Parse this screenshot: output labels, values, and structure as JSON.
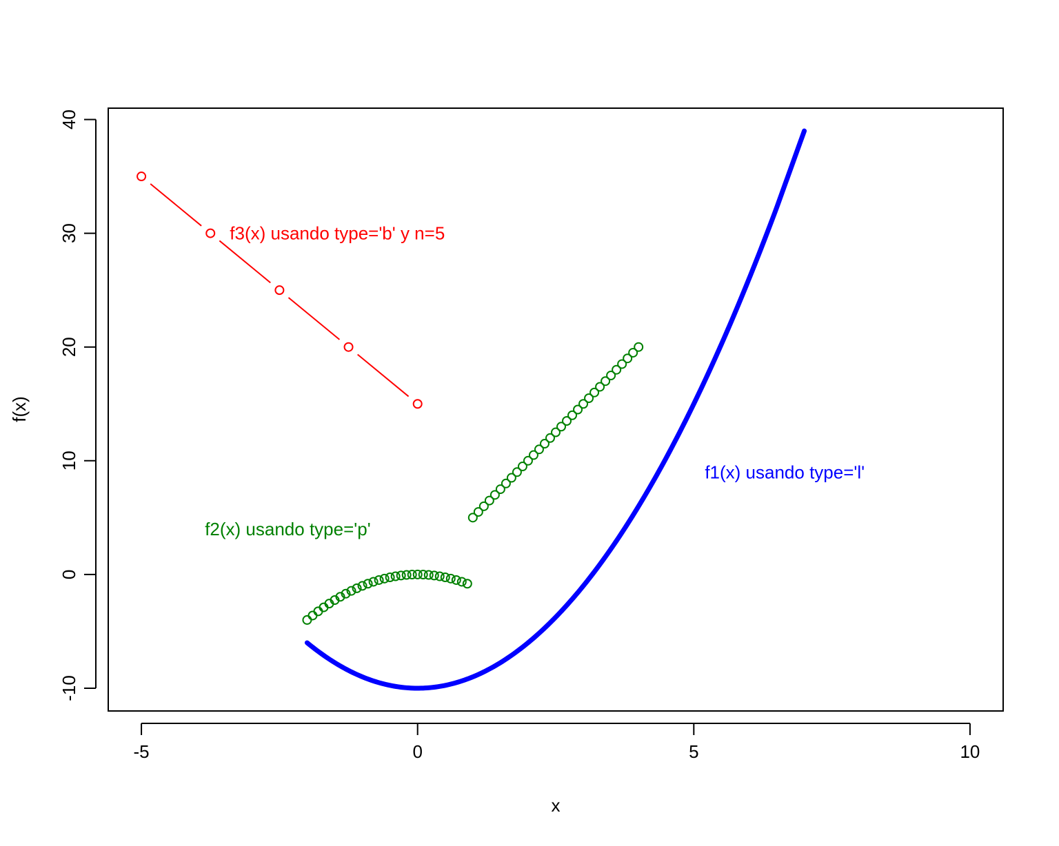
{
  "chart_data": {
    "type": "line",
    "xlabel": "x",
    "ylabel": "f(x)",
    "xlim": [
      -5.6,
      10.6
    ],
    "ylim": [
      -12,
      41
    ],
    "x_ticks": [
      -5,
      0,
      5,
      10
    ],
    "y_ticks": [
      -10,
      0,
      10,
      20,
      30,
      40
    ],
    "grid": false,
    "legend": "none",
    "series": [
      {
        "key": "f1",
        "color": "#0000ff",
        "style": "line",
        "x": [
          -2,
          -1.5,
          -1,
          -0.5,
          0,
          0.5,
          1,
          1.5,
          2,
          2.5,
          3,
          3.5,
          4,
          4.5,
          5,
          5.5,
          6,
          6.5,
          7
        ],
        "y": [
          -6,
          -7.75,
          -9,
          -9.75,
          -10,
          -9.75,
          -9,
          -7.75,
          -6,
          -3.75,
          -1,
          2.25,
          6,
          10.25,
          15,
          20.25,
          26,
          32.25,
          39
        ]
      },
      {
        "key": "f2a",
        "color": "#008000",
        "style": "points",
        "x": [
          -2,
          -1.9,
          -1.8,
          -1.7,
          -1.6,
          -1.5,
          -1.4,
          -1.3,
          -1.2,
          -1.1,
          -1,
          -0.9,
          -0.8,
          -0.7,
          -0.6,
          -0.5,
          -0.4,
          -0.3,
          -0.2,
          -0.1,
          0,
          0.1,
          0.2,
          0.3,
          0.4,
          0.5,
          0.6,
          0.7,
          0.8,
          0.9
        ],
        "y": [
          -4,
          -3.61,
          -3.24,
          -2.89,
          -2.56,
          -2.25,
          -1.96,
          -1.69,
          -1.44,
          -1.21,
          -1,
          -0.81,
          -0.64,
          -0.49,
          -0.36,
          -0.25,
          -0.16,
          -0.09,
          -0.04,
          -0.01,
          0,
          -0.01,
          -0.04,
          -0.09,
          -0.16,
          -0.25,
          -0.36,
          -0.49,
          -0.64,
          -0.81
        ]
      },
      {
        "key": "f2b",
        "color": "#008000",
        "style": "points",
        "x": [
          1,
          1.1,
          1.2,
          1.3,
          1.4,
          1.5,
          1.6,
          1.7,
          1.8,
          1.9,
          2,
          2.1,
          2.2,
          2.3,
          2.4,
          2.5,
          2.6,
          2.7,
          2.8,
          2.9,
          3,
          3.1,
          3.2,
          3.3,
          3.4,
          3.5,
          3.6,
          3.7,
          3.8,
          3.9,
          4
        ],
        "y": [
          5,
          5.5,
          6,
          6.5,
          7,
          7.5,
          8,
          8.5,
          9,
          9.5,
          10,
          10.5,
          11,
          11.5,
          12,
          12.5,
          13,
          13.5,
          14,
          14.5,
          15,
          15.5,
          16,
          16.5,
          17,
          17.5,
          18,
          18.5,
          19,
          19.5,
          20
        ]
      },
      {
        "key": "f3",
        "color": "#ff0000",
        "style": "both",
        "x": [
          -5,
          -3.75,
          -2.5,
          -1.25,
          0
        ],
        "y": [
          35,
          30,
          25,
          20,
          15
        ]
      }
    ],
    "annotations": [
      {
        "text": "f1(x) usando type='l'",
        "x": 5.2,
        "y": 9,
        "color": "#0000ff"
      },
      {
        "text": "f2(x) usando type='p'",
        "x": -3.85,
        "y": 4,
        "color": "#008000"
      },
      {
        "text": "f3(x) usando type='b' y n=5",
        "x": -3.4,
        "y": 30,
        "color": "#ff0000"
      }
    ]
  }
}
